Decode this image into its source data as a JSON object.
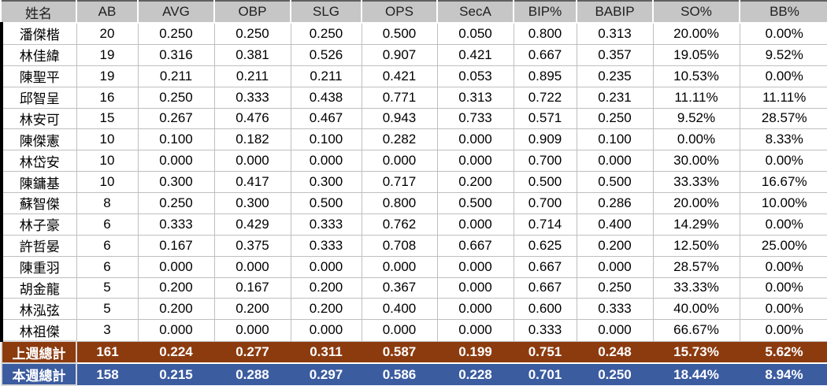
{
  "table": {
    "columns": [
      "姓名",
      "AB",
      "AVG",
      "OBP",
      "SLG",
      "OPS",
      "SecA",
      "BIP%",
      "BABIP",
      "SO%",
      "BB%"
    ],
    "players": [
      {
        "name": "潘傑楷",
        "values": [
          "20",
          "0.250",
          "0.250",
          "0.250",
          "0.500",
          "0.050",
          "0.800",
          "0.313",
          "20.00%",
          "0.00%"
        ]
      },
      {
        "name": "林佳緯",
        "values": [
          "19",
          "0.316",
          "0.381",
          "0.526",
          "0.907",
          "0.421",
          "0.667",
          "0.357",
          "19.05%",
          "9.52%"
        ]
      },
      {
        "name": "陳聖平",
        "values": [
          "19",
          "0.211",
          "0.211",
          "0.211",
          "0.421",
          "0.053",
          "0.895",
          "0.235",
          "10.53%",
          "0.00%"
        ]
      },
      {
        "name": "邱智呈",
        "values": [
          "16",
          "0.250",
          "0.333",
          "0.438",
          "0.771",
          "0.313",
          "0.722",
          "0.231",
          "11.11%",
          "11.11%"
        ]
      },
      {
        "name": "林安可",
        "values": [
          "15",
          "0.267",
          "0.476",
          "0.467",
          "0.943",
          "0.733",
          "0.571",
          "0.250",
          "9.52%",
          "28.57%"
        ]
      },
      {
        "name": "陳傑憲",
        "values": [
          "10",
          "0.100",
          "0.182",
          "0.100",
          "0.282",
          "0.000",
          "0.909",
          "0.100",
          "0.00%",
          "8.33%"
        ]
      },
      {
        "name": "林岱安",
        "values": [
          "10",
          "0.000",
          "0.000",
          "0.000",
          "0.000",
          "0.000",
          "0.700",
          "0.000",
          "30.00%",
          "0.00%"
        ]
      },
      {
        "name": "陳鏞基",
        "values": [
          "10",
          "0.300",
          "0.417",
          "0.300",
          "0.717",
          "0.200",
          "0.500",
          "0.500",
          "33.33%",
          "16.67%"
        ]
      },
      {
        "name": "蘇智傑",
        "values": [
          "8",
          "0.250",
          "0.300",
          "0.500",
          "0.800",
          "0.500",
          "0.700",
          "0.286",
          "20.00%",
          "10.00%"
        ]
      },
      {
        "name": "林子豪",
        "values": [
          "6",
          "0.333",
          "0.429",
          "0.333",
          "0.762",
          "0.000",
          "0.714",
          "0.400",
          "14.29%",
          "0.00%"
        ]
      },
      {
        "name": "許哲晏",
        "values": [
          "6",
          "0.167",
          "0.375",
          "0.333",
          "0.708",
          "0.667",
          "0.625",
          "0.200",
          "12.50%",
          "25.00%"
        ]
      },
      {
        "name": "陳重羽",
        "values": [
          "6",
          "0.000",
          "0.000",
          "0.000",
          "0.000",
          "0.000",
          "0.667",
          "0.000",
          "28.57%",
          "0.00%"
        ]
      },
      {
        "name": "胡金龍",
        "values": [
          "5",
          "0.200",
          "0.167",
          "0.200",
          "0.367",
          "0.000",
          "0.667",
          "0.250",
          "33.33%",
          "0.00%"
        ]
      },
      {
        "name": "林泓弦",
        "values": [
          "5",
          "0.200",
          "0.200",
          "0.200",
          "0.400",
          "0.000",
          "0.600",
          "0.333",
          "40.00%",
          "0.00%"
        ]
      },
      {
        "name": "林祖傑",
        "values": [
          "3",
          "0.000",
          "0.000",
          "0.000",
          "0.000",
          "0.000",
          "0.333",
          "0.000",
          "66.67%",
          "0.00%"
        ]
      }
    ],
    "totals": [
      {
        "label": "上週總計",
        "color": "#8C3B0F",
        "values": [
          "161",
          "0.224",
          "0.277",
          "0.311",
          "0.587",
          "0.199",
          "0.751",
          "0.248",
          "15.73%",
          "5.62%"
        ]
      },
      {
        "label": "本週總計",
        "color": "#3C5CA0",
        "values": [
          "158",
          "0.215",
          "0.288",
          "0.297",
          "0.586",
          "0.228",
          "0.701",
          "0.250",
          "18.44%",
          "8.94%"
        ]
      }
    ]
  },
  "colors": {
    "header_bg": "#C6C6C6",
    "gridline": "#BFBFBF",
    "last_week_total_bg": "#8C3B0F",
    "this_week_total_bg": "#3C5CA0",
    "total_text": "#FFFFFF",
    "left_accent_bar": "#000000"
  }
}
